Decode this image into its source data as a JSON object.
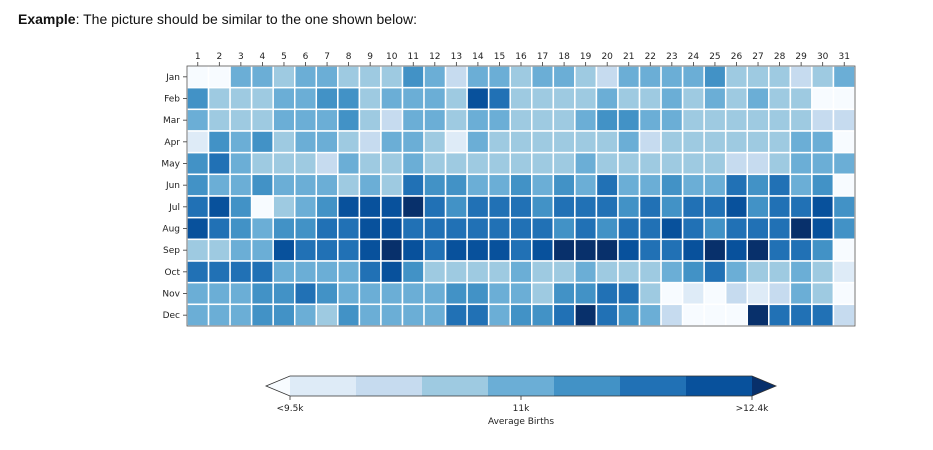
{
  "intro": {
    "label": "Example",
    "text": ": The picture should be similar to the one shown below:"
  },
  "chart_data": {
    "type": "heatmap",
    "x_categories": [
      "1",
      "2",
      "3",
      "4",
      "5",
      "6",
      "7",
      "8",
      "9",
      "10",
      "11",
      "12",
      "13",
      "14",
      "15",
      "16",
      "17",
      "18",
      "19",
      "20",
      "21",
      "22",
      "23",
      "24",
      "25",
      "26",
      "27",
      "28",
      "29",
      "30",
      "31"
    ],
    "y_categories": [
      "Jan",
      "Feb",
      "Mar",
      "Apr",
      "May",
      "Jun",
      "Jul",
      "Aug",
      "Sep",
      "Oct",
      "Nov",
      "Dec"
    ],
    "color_levels": [
      "#f7fbff",
      "#deebf7",
      "#c6dbef",
      "#9ecae1",
      "#6baed6",
      "#4292c6",
      "#2171b5",
      "#08519c",
      "#08306b"
    ],
    "values": [
      [
        0,
        0,
        4,
        4,
        3,
        4,
        4,
        3,
        3,
        3,
        5,
        4,
        2,
        4,
        4,
        3,
        4,
        4,
        3,
        2,
        4,
        4,
        4,
        4,
        5,
        3,
        3,
        3,
        2,
        3,
        4
      ],
      [
        5,
        3,
        3,
        3,
        4,
        4,
        5,
        5,
        3,
        4,
        4,
        4,
        3,
        7,
        6,
        3,
        3,
        3,
        3,
        4,
        3,
        3,
        4,
        3,
        4,
        3,
        4,
        3,
        3,
        0,
        0
      ],
      [
        4,
        3,
        3,
        3,
        4,
        4,
        4,
        5,
        3,
        2,
        4,
        4,
        3,
        4,
        4,
        3,
        3,
        3,
        4,
        5,
        5,
        4,
        4,
        3,
        3,
        3,
        3,
        3,
        3,
        2,
        2
      ],
      [
        1,
        5,
        4,
        5,
        3,
        4,
        4,
        3,
        2,
        4,
        4,
        3,
        1,
        4,
        3,
        3,
        3,
        3,
        3,
        3,
        4,
        2,
        3,
        3,
        3,
        3,
        3,
        3,
        4,
        4,
        0
      ],
      [
        5,
        6,
        4,
        3,
        3,
        3,
        2,
        4,
        3,
        3,
        4,
        3,
        3,
        3,
        3,
        3,
        3,
        3,
        4,
        3,
        3,
        3,
        3,
        3,
        3,
        2,
        2,
        3,
        4,
        4,
        4
      ],
      [
        5,
        4,
        4,
        5,
        4,
        4,
        4,
        3,
        4,
        3,
        6,
        5,
        5,
        4,
        4,
        5,
        4,
        5,
        4,
        6,
        4,
        4,
        5,
        4,
        4,
        6,
        5,
        6,
        4,
        5,
        0
      ],
      [
        6,
        7,
        5,
        0,
        3,
        4,
        5,
        7,
        7,
        7,
        8,
        6,
        5,
        6,
        6,
        6,
        5,
        6,
        6,
        6,
        5,
        6,
        5,
        6,
        6,
        7,
        5,
        6,
        6,
        7,
        5
      ],
      [
        7,
        6,
        5,
        4,
        5,
        5,
        6,
        6,
        7,
        7,
        6,
        6,
        6,
        6,
        6,
        6,
        6,
        5,
        6,
        5,
        6,
        6,
        7,
        6,
        5,
        6,
        6,
        6,
        8,
        7,
        5
      ],
      [
        3,
        3,
        4,
        4,
        7,
        6,
        6,
        6,
        7,
        8,
        7,
        6,
        7,
        7,
        7,
        6,
        7,
        8,
        8,
        8,
        7,
        6,
        6,
        7,
        8,
        7,
        8,
        6,
        6,
        5,
        0
      ],
      [
        6,
        6,
        6,
        6,
        4,
        4,
        4,
        4,
        6,
        7,
        5,
        3,
        3,
        3,
        3,
        4,
        3,
        3,
        4,
        3,
        3,
        3,
        4,
        5,
        6,
        4,
        3,
        3,
        4,
        3,
        1
      ],
      [
        4,
        4,
        4,
        5,
        5,
        6,
        5,
        4,
        4,
        4,
        4,
        4,
        5,
        5,
        4,
        4,
        3,
        5,
        5,
        6,
        6,
        3,
        0,
        1,
        0,
        2,
        1,
        2,
        4,
        3,
        0
      ],
      [
        4,
        4,
        4,
        5,
        5,
        4,
        3,
        5,
        4,
        4,
        4,
        4,
        6,
        6,
        4,
        5,
        5,
        6,
        8,
        6,
        5,
        4,
        2,
        0,
        0,
        0,
        8,
        6,
        6,
        6,
        2
      ]
    ],
    "colorbar": {
      "label": "Average Births",
      "ticks": [
        "<9.5k",
        "11k",
        ">12.4k"
      ],
      "extend": "both"
    }
  }
}
